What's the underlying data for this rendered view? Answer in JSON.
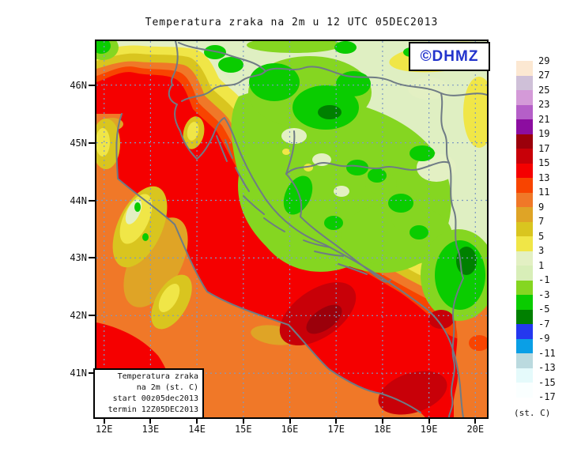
{
  "title": "Temperatura zraka na 2m u 12 UTC 05DEC2013",
  "watermark": {
    "label": "©DHMZ",
    "color": "#2233CC"
  },
  "info_box": {
    "lines": [
      "Temperatura zraka",
      "na 2m (st. C)",
      "start 00z05dec2013",
      "termin 12Z05DEC2013"
    ]
  },
  "axes": {
    "x_tick_labels": [
      "12E",
      "13E",
      "14E",
      "15E",
      "16E",
      "17E",
      "18E",
      "19E",
      "20E"
    ],
    "y_tick_labels": [
      "46N",
      "45N",
      "44N",
      "43N",
      "42N",
      "41N"
    ]
  },
  "colorbar": {
    "unit_label": "(st. C)",
    "boundary_labels": [
      "29",
      "27",
      "25",
      "23",
      "21",
      "19",
      "17",
      "15",
      "13",
      "11",
      "9",
      "7",
      "5",
      "3",
      "1",
      "-1",
      "-3",
      "-5",
      "-7",
      "-9",
      "-11",
      "-13",
      "-15",
      "-17"
    ],
    "colors": [
      "#FCE8D2",
      "#CFC0D8",
      "#D49AD8",
      "#B55FC8",
      "#8C0DA0",
      "#9B000B",
      "#C80008",
      "#F50000",
      "#F84400",
      "#F07828",
      "#DFA426",
      "#D9C51F",
      "#F0E647",
      "#E3F0C3",
      "#D8EEB8",
      "#85D621",
      "#0ACC00",
      "#008000",
      "#2438EF",
      "#0A9FE6",
      "#BBDADF",
      "#E5FAFB",
      "#FAFFFF"
    ]
  },
  "colors": {
    "coastline_gray": "#6F7B85",
    "grid_dot": "#7E9AC4",
    "frame_black": "#000000"
  }
}
